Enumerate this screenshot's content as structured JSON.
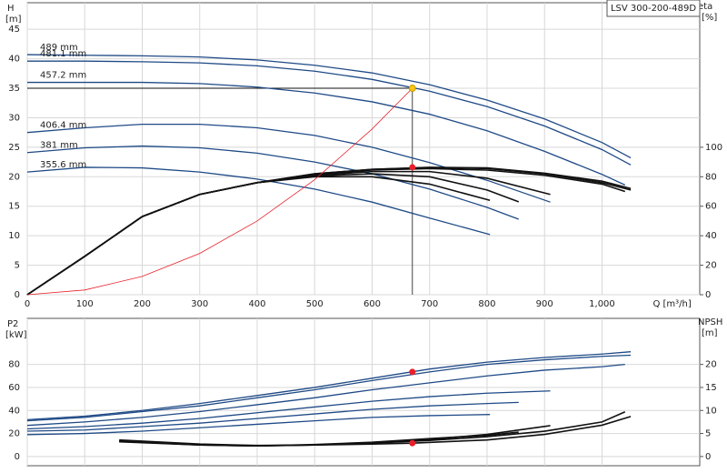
{
  "chart_data": [
    {
      "type": "line",
      "title": "LSV 300-200-489D",
      "x_label": "Q [m³/h]",
      "y_label": "H",
      "y_unit": "[m]",
      "y2_label": "eta",
      "y2_unit": "[%]",
      "xlim": [
        0,
        1170
      ],
      "xticks": [
        0,
        100,
        200,
        300,
        400,
        500,
        600,
        700,
        800,
        900,
        {
          "value": 1000,
          "label": "1,000"
        }
      ],
      "ylim": [
        0,
        49.5
      ],
      "yticks": [
        0,
        5,
        10,
        15,
        20,
        25,
        30,
        35,
        40,
        45
      ],
      "y2lim": [
        0,
        198
      ],
      "y2ticks": [
        0,
        20,
        40,
        60,
        80,
        100
      ],
      "grid": true,
      "series": [
        {
          "name": "489 mm",
          "color": "#1f4a86",
          "x": [
            0,
            100,
            200,
            300,
            400,
            500,
            600,
            700,
            800,
            900,
            1000,
            1050
          ],
          "values": [
            40.7,
            40.6,
            40.5,
            40.3,
            39.8,
            38.9,
            37.6,
            35.6,
            33,
            29.8,
            25.8,
            23.2
          ]
        },
        {
          "name": "481.1 mm",
          "color": "#1f4a86",
          "x": [
            0,
            100,
            200,
            300,
            400,
            500,
            600,
            700,
            800,
            900,
            1000,
            1050
          ],
          "values": [
            39.6,
            39.6,
            39.5,
            39.3,
            38.8,
            37.9,
            36.5,
            34.5,
            31.9,
            28.6,
            24.6,
            22
          ]
        },
        {
          "name": "457.2 mm",
          "color": "#1f4a86",
          "x": [
            0,
            100,
            200,
            300,
            400,
            500,
            600,
            700,
            800,
            900,
            1000,
            1040
          ],
          "values": [
            36,
            36,
            36,
            35.8,
            35.2,
            34.2,
            32.7,
            30.6,
            27.8,
            24.3,
            20.4,
            18.6
          ]
        },
        {
          "name": "406.4 mm",
          "color": "#1f4a86",
          "x": [
            0,
            100,
            200,
            300,
            400,
            500,
            600,
            700,
            800,
            910
          ],
          "values": [
            27.5,
            28.3,
            28.9,
            28.9,
            28.3,
            27,
            25,
            22.4,
            19.4,
            15.7
          ]
        },
        {
          "name": "381 mm",
          "color": "#1f4a86",
          "x": [
            0,
            100,
            200,
            300,
            400,
            500,
            600,
            700,
            800,
            855
          ],
          "values": [
            24.1,
            24.9,
            25.2,
            24.9,
            24,
            22.5,
            20.5,
            17.9,
            14.8,
            12.8
          ]
        },
        {
          "name": "355.6 mm",
          "color": "#1f4a86",
          "x": [
            0,
            100,
            200,
            300,
            400,
            500,
            600,
            700,
            805
          ],
          "values": [
            20.8,
            21.6,
            21.5,
            20.8,
            19.6,
            17.9,
            15.7,
            13,
            10.2
          ]
        },
        {
          "color": "#111111",
          "axis": "y2",
          "x": [
            0,
            100,
            200,
            300,
            400,
            500,
            600,
            700,
            800,
            900,
            1000,
            1050
          ],
          "values": [
            0,
            26,
            53,
            68,
            76,
            82,
            85,
            86.4,
            86,
            82.4,
            77,
            72
          ]
        },
        {
          "color": "#111111",
          "axis": "y2",
          "x": [
            0,
            100,
            200,
            300,
            400,
            500,
            600,
            700,
            800,
            900,
            1000,
            1050
          ],
          "values": [
            0,
            26,
            53,
            68,
            76,
            82,
            85,
            86.2,
            85.5,
            82,
            76,
            71
          ]
        },
        {
          "color": "#111111",
          "axis": "y2",
          "x": [
            0,
            100,
            200,
            300,
            400,
            500,
            600,
            700,
            800,
            900,
            1000,
            1040
          ],
          "values": [
            0,
            26,
            53,
            68,
            76,
            81.5,
            84.5,
            85.5,
            84.5,
            81,
            75,
            70
          ]
        },
        {
          "color": "#111111",
          "axis": "y2",
          "x": [
            0,
            100,
            200,
            300,
            400,
            500,
            600,
            700,
            800,
            910
          ],
          "values": [
            0,
            26,
            53,
            68,
            76,
            81,
            83.5,
            83.5,
            79,
            68
          ]
        },
        {
          "color": "#111111",
          "axis": "y2",
          "x": [
            0,
            100,
            200,
            300,
            400,
            500,
            600,
            700,
            800,
            855
          ],
          "values": [
            0,
            26,
            53,
            68,
            76,
            80.5,
            82,
            80,
            71,
            63
          ]
        },
        {
          "color": "#111111",
          "axis": "y2",
          "x": [
            0,
            100,
            200,
            300,
            400,
            500,
            600,
            700,
            805
          ],
          "values": [
            0,
            26,
            53,
            68,
            76,
            80,
            80,
            75,
            64
          ]
        },
        {
          "color": "#e8202a",
          "x": [
            0,
            100,
            200,
            300,
            400,
            500,
            600,
            670
          ],
          "values": [
            0,
            0.8,
            3.1,
            7,
            12.5,
            19.5,
            28.1,
            35
          ]
        }
      ],
      "points": [
        {
          "x": 670,
          "y": 35,
          "color": "#f5c518"
        },
        {
          "x": 670,
          "y": 86.4,
          "axis": "y2",
          "color": "#e8202a"
        }
      ]
    },
    {
      "type": "line",
      "y_label": "P2",
      "y_unit": "[kW]",
      "y2_label": "NPSH",
      "y2_unit": "[m]",
      "xlim": [
        0,
        1170
      ],
      "xticks": [
        0,
        100,
        200,
        300,
        400,
        500,
        600,
        700,
        800,
        900,
        1000
      ],
      "ylim": [
        -8,
        120
      ],
      "yticks": [
        0,
        20,
        40,
        60,
        80
      ],
      "y2lim": [
        -2,
        30
      ],
      "y2ticks": [
        0,
        5,
        10,
        15,
        20
      ],
      "grid": true,
      "series": [
        {
          "color": "#1f4a86",
          "x": [
            0,
            100,
            200,
            300,
            400,
            500,
            600,
            700,
            800,
            900,
            1000,
            1050
          ],
          "values": [
            32,
            35,
            40,
            46,
            53,
            60,
            68,
            76,
            82,
            86,
            89,
            91
          ]
        },
        {
          "color": "#1f4a86",
          "x": [
            0,
            100,
            200,
            300,
            400,
            500,
            600,
            700,
            800,
            900,
            1000,
            1050
          ],
          "values": [
            31,
            34,
            39,
            44,
            51,
            58,
            66,
            73.5,
            80,
            84,
            87,
            88
          ]
        },
        {
          "color": "#1f4a86",
          "x": [
            0,
            100,
            200,
            300,
            400,
            500,
            600,
            700,
            800,
            900,
            1000,
            1040
          ],
          "values": [
            27,
            30,
            34,
            39,
            45,
            51,
            58,
            64,
            70,
            75,
            78,
            80
          ]
        },
        {
          "color": "#1f4a86",
          "x": [
            0,
            100,
            200,
            300,
            400,
            500,
            600,
            700,
            800,
            910
          ],
          "values": [
            24,
            26,
            29,
            33,
            38,
            43,
            48,
            52,
            55,
            57
          ]
        },
        {
          "color": "#1f4a86",
          "x": [
            0,
            100,
            200,
            300,
            400,
            500,
            600,
            700,
            800,
            855
          ],
          "values": [
            22,
            23,
            26,
            29,
            33,
            37,
            41,
            44,
            46,
            47
          ]
        },
        {
          "color": "#1f4a86",
          "x": [
            0,
            100,
            200,
            300,
            400,
            500,
            600,
            700,
            805
          ],
          "values": [
            19,
            20,
            22,
            25,
            28,
            31,
            34,
            35.5,
            36.5
          ]
        },
        {
          "color": "#111111",
          "axis": "y2",
          "x": [
            160,
            300,
            400,
            500,
            600,
            670,
            800,
            900,
            1000,
            1050
          ],
          "values": [
            3.6,
            2.7,
            2.4,
            2.5,
            2.7,
            2.9,
            3.6,
            4.8,
            6.8,
            8.7
          ]
        },
        {
          "color": "#111111",
          "axis": "y2",
          "x": [
            160,
            300,
            400,
            500,
            600,
            700,
            800,
            900,
            1000,
            1040
          ],
          "values": [
            3.4,
            2.6,
            2.3,
            2.5,
            2.9,
            3.5,
            4.3,
            5.5,
            7.5,
            9.7
          ]
        },
        {
          "color": "#111111",
          "axis": "y2",
          "x": [
            160,
            300,
            400,
            500,
            600,
            700,
            800,
            910
          ],
          "values": [
            3.3,
            2.5,
            2.3,
            2.5,
            3,
            3.7,
            4.8,
            6.7
          ]
        },
        {
          "color": "#111111",
          "axis": "y2",
          "x": [
            160,
            300,
            400,
            500,
            600,
            700,
            800,
            855
          ],
          "values": [
            3.2,
            2.5,
            2.3,
            2.6,
            3.1,
            3.9,
            4.6,
            5.3
          ]
        }
      ],
      "points": [
        {
          "x": 670,
          "y": 73.5,
          "color": "#e8202a"
        },
        {
          "x": 670,
          "y": 2.9,
          "axis": "y2",
          "color": "#e8202a"
        }
      ]
    }
  ]
}
